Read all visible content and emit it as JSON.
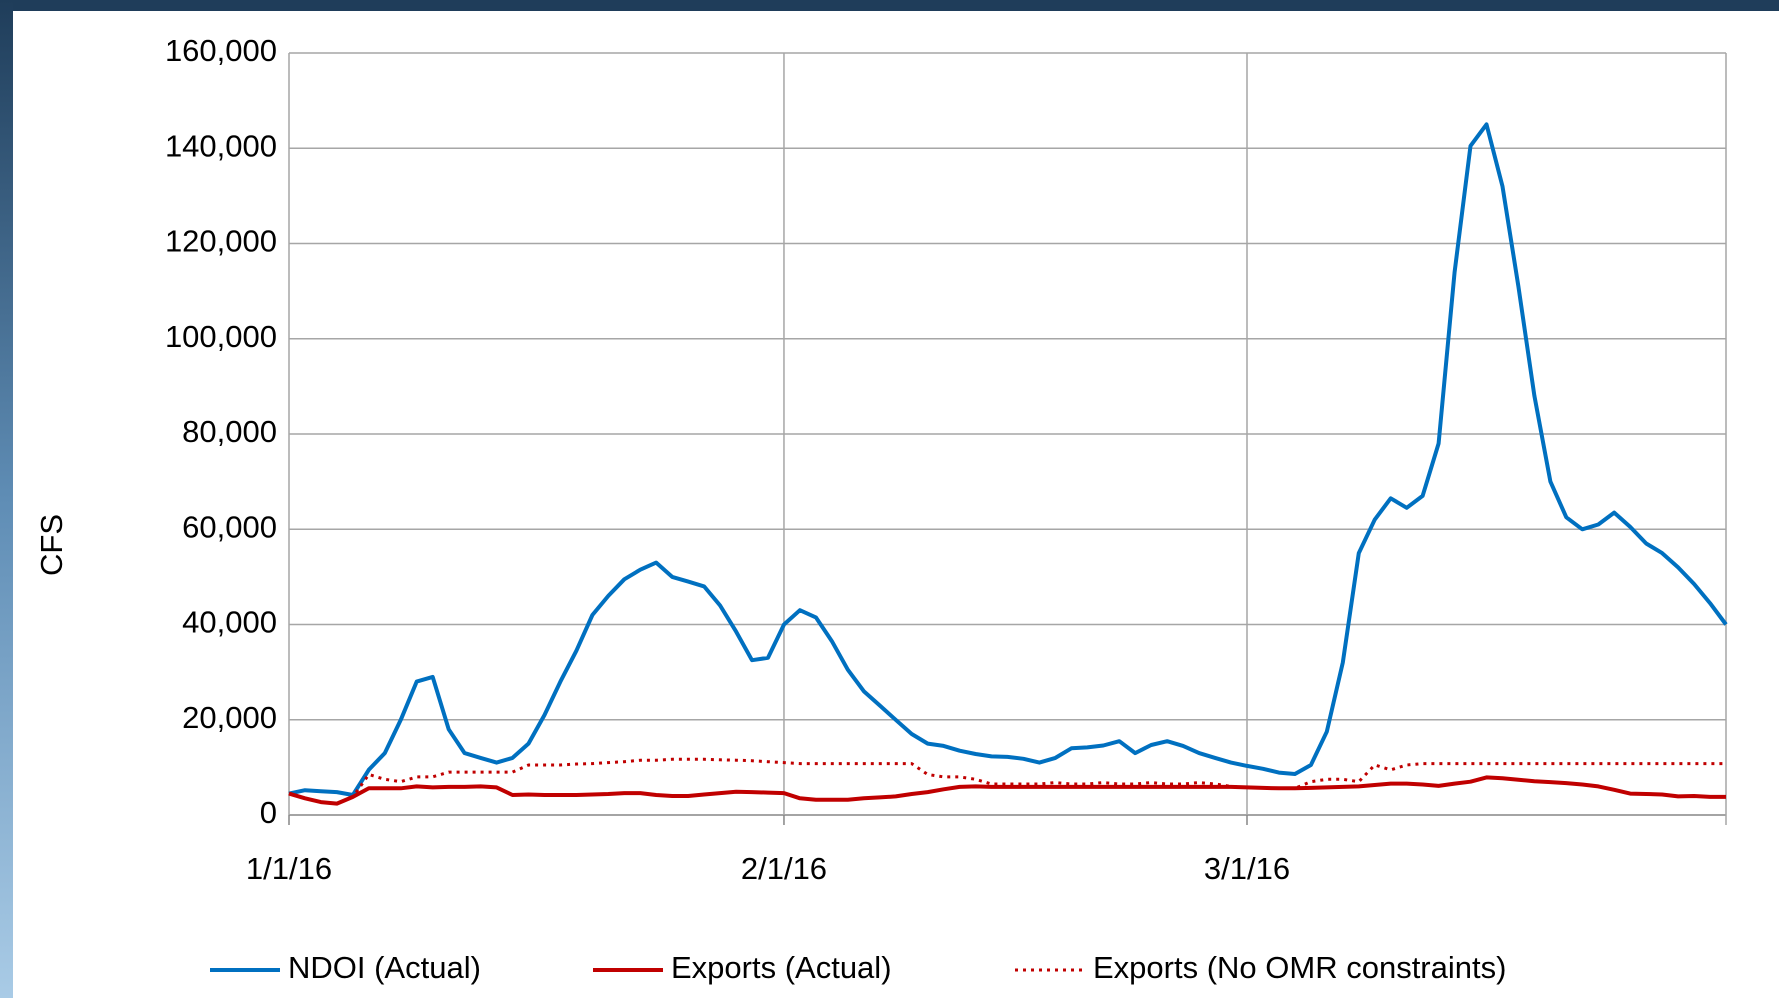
{
  "chart_data": {
    "type": "line",
    "y_label": "CFS",
    "categories": [
      "1/1/16",
      null,
      null,
      null,
      null,
      null,
      null,
      null,
      null,
      null,
      null,
      null,
      null,
      null,
      null,
      null,
      null,
      null,
      null,
      null,
      null,
      null,
      null,
      null,
      null,
      null,
      null,
      null,
      null,
      null,
      null,
      "2/1/16",
      null,
      null,
      null,
      null,
      null,
      null,
      null,
      null,
      null,
      null,
      null,
      null,
      null,
      null,
      null,
      null,
      null,
      null,
      null,
      null,
      null,
      null,
      null,
      null,
      null,
      null,
      null,
      null,
      "3/1/16",
      null,
      null,
      null,
      null,
      null,
      null,
      null,
      null,
      null,
      null,
      null,
      null,
      null,
      null,
      null,
      null,
      null,
      null,
      null,
      null,
      null,
      null,
      null,
      null,
      null,
      null,
      null,
      null,
      null,
      null
    ],
    "series": [
      {
        "name": "NDOI (Actual)",
        "color": "#0070c0",
        "style": "solid",
        "values": [
          4500,
          5200,
          5000,
          4800,
          4200,
          9500,
          13000,
          20000,
          28000,
          29000,
          18000,
          13000,
          12000,
          11000,
          12000,
          15000,
          21000,
          28000,
          34500,
          42000,
          46000,
          49500,
          51500,
          53000,
          50000,
          49000,
          48000,
          44000,
          38500,
          32500,
          33000,
          40000,
          43000,
          41500,
          36500,
          30500,
          26000,
          23000,
          20000,
          17000,
          15000,
          14500,
          13500,
          12800,
          12300,
          12200,
          11800,
          11000,
          12000,
          14000,
          14200,
          14600,
          15500,
          13000,
          14700,
          15500,
          14500,
          13000,
          12000,
          11000,
          10300,
          9700,
          8900,
          8600,
          10500,
          17500,
          32000,
          55000,
          62000,
          66500,
          64500,
          67000,
          78000,
          114000,
          140500,
          145000,
          132000,
          111000,
          88000,
          70000,
          62500,
          60000,
          61000,
          63500,
          60500,
          57000,
          55000,
          52000,
          48500,
          44500,
          40000
        ]
      },
      {
        "name": "Exports (Actual)",
        "color": "#c00000",
        "style": "solid",
        "values": [
          4500,
          3500,
          2700,
          2400,
          3800,
          5600,
          5600,
          5600,
          6000,
          5800,
          5900,
          5900,
          6000,
          5800,
          4200,
          4300,
          4200,
          4200,
          4200,
          4300,
          4400,
          4600,
          4600,
          4200,
          4000,
          4000,
          4300,
          4600,
          4900,
          4800,
          4700,
          4600,
          3500,
          3200,
          3200,
          3200,
          3500,
          3700,
          3900,
          4400,
          4800,
          5400,
          5900,
          6000,
          5900,
          5900,
          5900,
          5900,
          5900,
          5900,
          5900,
          5900,
          5900,
          5900,
          5900,
          5900,
          5900,
          5900,
          5900,
          5900,
          5800,
          5700,
          5600,
          5600,
          5700,
          5800,
          5900,
          6000,
          6300,
          6600,
          6600,
          6400,
          6100,
          6600,
          7000,
          7900,
          7700,
          7400,
          7100,
          6900,
          6700,
          6400,
          6000,
          5300,
          4500,
          4400,
          4300,
          3900,
          4000,
          3800,
          3800
        ]
      },
      {
        "name": "Exports (No OMR constraints)",
        "color": "#c00000",
        "style": "dotted",
        "values": [
          4500,
          3500,
          2700,
          2400,
          3800,
          8500,
          7500,
          7000,
          8000,
          8000,
          9000,
          9000,
          9000,
          9000,
          9000,
          10500,
          10500,
          10500,
          10700,
          10800,
          11000,
          11200,
          11500,
          11500,
          11700,
          11700,
          11700,
          11600,
          11500,
          11400,
          11200,
          11000,
          10800,
          10800,
          10800,
          10800,
          10800,
          10800,
          10800,
          10800,
          8500,
          8000,
          8000,
          7500,
          6500,
          6500,
          6500,
          6500,
          6800,
          6500,
          6500,
          6800,
          6500,
          6500,
          6800,
          6500,
          6500,
          6800,
          6500,
          6000,
          5800,
          5700,
          5600,
          5600,
          7000,
          7500,
          7500,
          7000,
          10500,
          9500,
          10500,
          10800,
          10800,
          10800,
          10800,
          10800,
          10800,
          10800,
          10800,
          10800,
          10800,
          10800,
          10800,
          10800,
          10800,
          10800,
          10800,
          10800,
          10800,
          10800,
          10800
        ]
      }
    ],
    "ylim": [
      0,
      160000
    ],
    "yticks": [
      0,
      {
        "value": 20000,
        "label": "20,000"
      },
      {
        "value": 40000,
        "label": "40,000"
      },
      {
        "value": 60000,
        "label": "60,000"
      },
      {
        "value": 80000,
        "label": "80,000"
      },
      {
        "value": 100000,
        "label": "100,000"
      },
      {
        "value": 120000,
        "label": "120,000"
      },
      {
        "value": 140000,
        "label": "140,000"
      },
      {
        "value": 160000,
        "label": "160,000"
      }
    ],
    "grid": true,
    "legend": "bottom"
  }
}
